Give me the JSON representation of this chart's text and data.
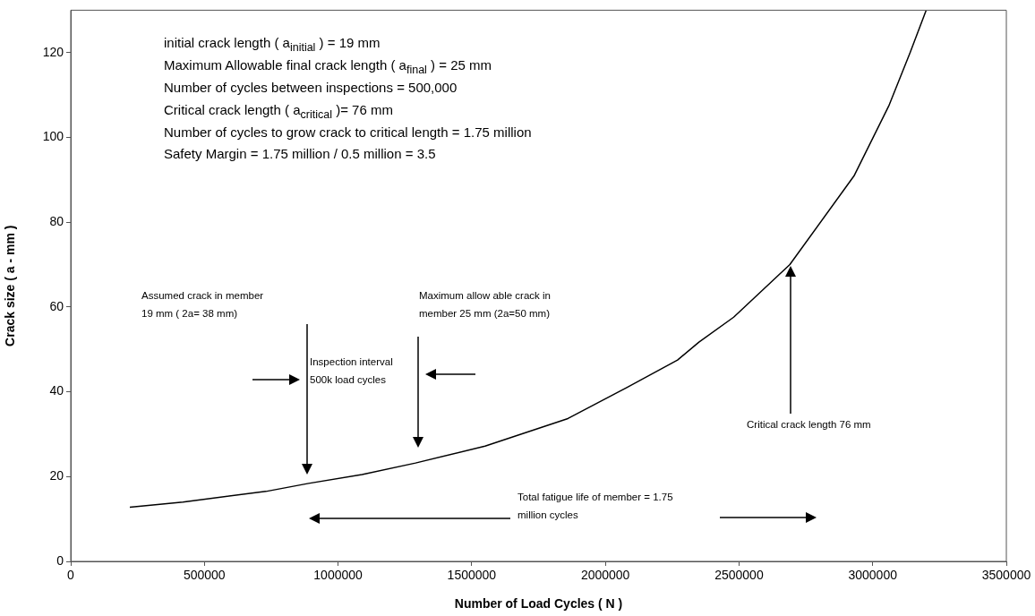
{
  "chart_data": {
    "type": "line",
    "xlabel": "Number of Load Cycles ( N )",
    "ylabel": "Crack size ( a - mm )",
    "x": [
      221000,
      420000,
      730000,
      890000,
      1090000,
      1290000,
      1550000,
      1860000,
      2080000,
      2270000,
      2350000,
      2480000,
      2690000,
      2930000,
      3060000,
      3140000,
      3200000
    ],
    "series": [
      {
        "color": "#000000",
        "values": [
          12.8,
          14.0,
          16.5,
          18.4,
          20.5,
          23.2,
          27.2,
          33.7,
          41.0,
          47.5,
          51.7,
          57.6,
          70.0,
          90.9,
          107.4,
          120.0,
          130.0
        ]
      }
    ],
    "xlim": [
      0,
      3500000
    ],
    "xticks": [
      0,
      500000,
      1000000,
      1500000,
      2000000,
      2500000,
      3000000,
      3500000
    ],
    "ylim": [
      0,
      130
    ],
    "yticks": [
      0,
      20,
      40,
      60,
      80,
      100,
      120
    ],
    "grid": false,
    "legend": false,
    "marker": "none",
    "line_style": "solid",
    "annotations": [
      "initial crack length ( a$_{initial}$ )  = 19 mm",
      "Maximum Allowable final crack length ( a$_{final}$ ) = 25 mm",
      "Number of cycles between inspections = 500,000",
      "Critical crack length ( a$_{critical}$ )= 76 mm",
      "Number of cycles to grow crack to critical length = 1.75 million",
      "Safety Margin = 1.75 million / 0.5 million = 3.5",
      "Assumed crack in member\n19 mm ( 2a= 38 mm)",
      "Maximum allow able crack in\nmember 25 mm (2a=50 mm)",
      "Inspection interval\n500k load cycles",
      "Critical crack length 76 mm",
      "Total fatigue life of member = 1.75\nmillion cycles"
    ]
  }
}
